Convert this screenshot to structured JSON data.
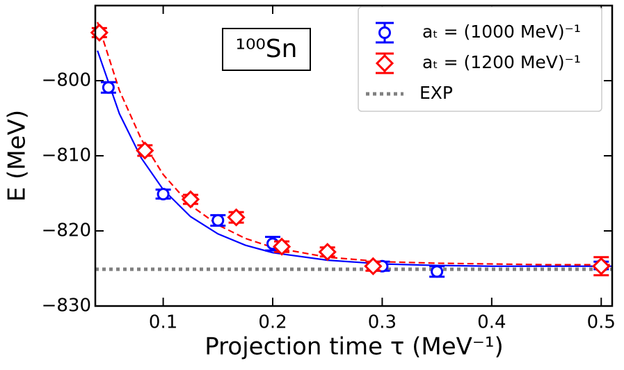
{
  "chart_data": {
    "type": "scatter",
    "xlabel": "Projection time τ (MeV⁻¹)",
    "ylabel": "E (MeV)",
    "annotation": "¹⁰⁰Sn",
    "xlim": [
      0.038,
      0.51
    ],
    "ylim": [
      -830,
      -790
    ],
    "xticks": [
      0.1,
      0.2,
      0.3,
      0.4,
      0.5
    ],
    "yticks": [
      {
        "value": -830,
        "label": "−830"
      },
      {
        "value": -820,
        "label": "−820"
      },
      {
        "value": -810,
        "label": "−810"
      },
      {
        "value": -800,
        "label": "−800"
      }
    ],
    "legend": "upper right",
    "series": [
      {
        "name": "aₜ = (1000 MeV)⁻¹",
        "color": "#0000ff",
        "marker": "circle",
        "x": [
          0.05,
          0.1,
          0.15,
          0.2,
          0.3,
          0.35,
          0.5
        ],
        "values": [
          -800.9,
          -815.1,
          -818.6,
          -821.7,
          -824.7,
          -825.4,
          -824.6
        ],
        "errors": [
          0.7,
          0.6,
          0.7,
          0.9,
          0.6,
          0.7,
          0.5
        ]
      },
      {
        "name": "aₜ = (1200 MeV)⁻¹",
        "color": "#ff0000",
        "marker": "diamond",
        "x": [
          0.0417,
          0.0833,
          0.125,
          0.1667,
          0.2083,
          0.25,
          0.2917,
          0.5
        ],
        "values": [
          -793.6,
          -809.3,
          -815.8,
          -818.2,
          -822.1,
          -822.8,
          -824.7,
          -824.7
        ],
        "errors": [
          0.6,
          0.7,
          0.6,
          0.7,
          0.7,
          0.6,
          0.6,
          1.2
        ]
      }
    ],
    "fits": [
      {
        "color": "#0000ff",
        "style": "solid",
        "x": [
          0.04,
          0.06,
          0.08,
          0.1,
          0.125,
          0.15,
          0.175,
          0.2,
          0.25,
          0.3,
          0.35,
          0.4,
          0.45,
          0.51
        ],
        "values": [
          -796.0,
          -804.4,
          -810.3,
          -814.5,
          -818.1,
          -820.4,
          -821.9,
          -822.9,
          -823.9,
          -824.4,
          -824.6,
          -824.7,
          -824.7,
          -824.7
        ]
      },
      {
        "color": "#ff0000",
        "style": "dashed",
        "x": [
          0.04,
          0.06,
          0.08,
          0.1,
          0.125,
          0.15,
          0.175,
          0.2,
          0.25,
          0.3,
          0.35,
          0.4,
          0.45,
          0.51
        ],
        "values": [
          -792.2,
          -801.3,
          -807.8,
          -812.5,
          -816.6,
          -819.2,
          -821.0,
          -822.2,
          -823.5,
          -824.1,
          -824.3,
          -824.4,
          -824.5,
          -824.5
        ]
      }
    ],
    "reference_lines": [
      {
        "name": "EXP",
        "value": -825.1,
        "color": "#808080",
        "style": "dotted"
      }
    ]
  }
}
